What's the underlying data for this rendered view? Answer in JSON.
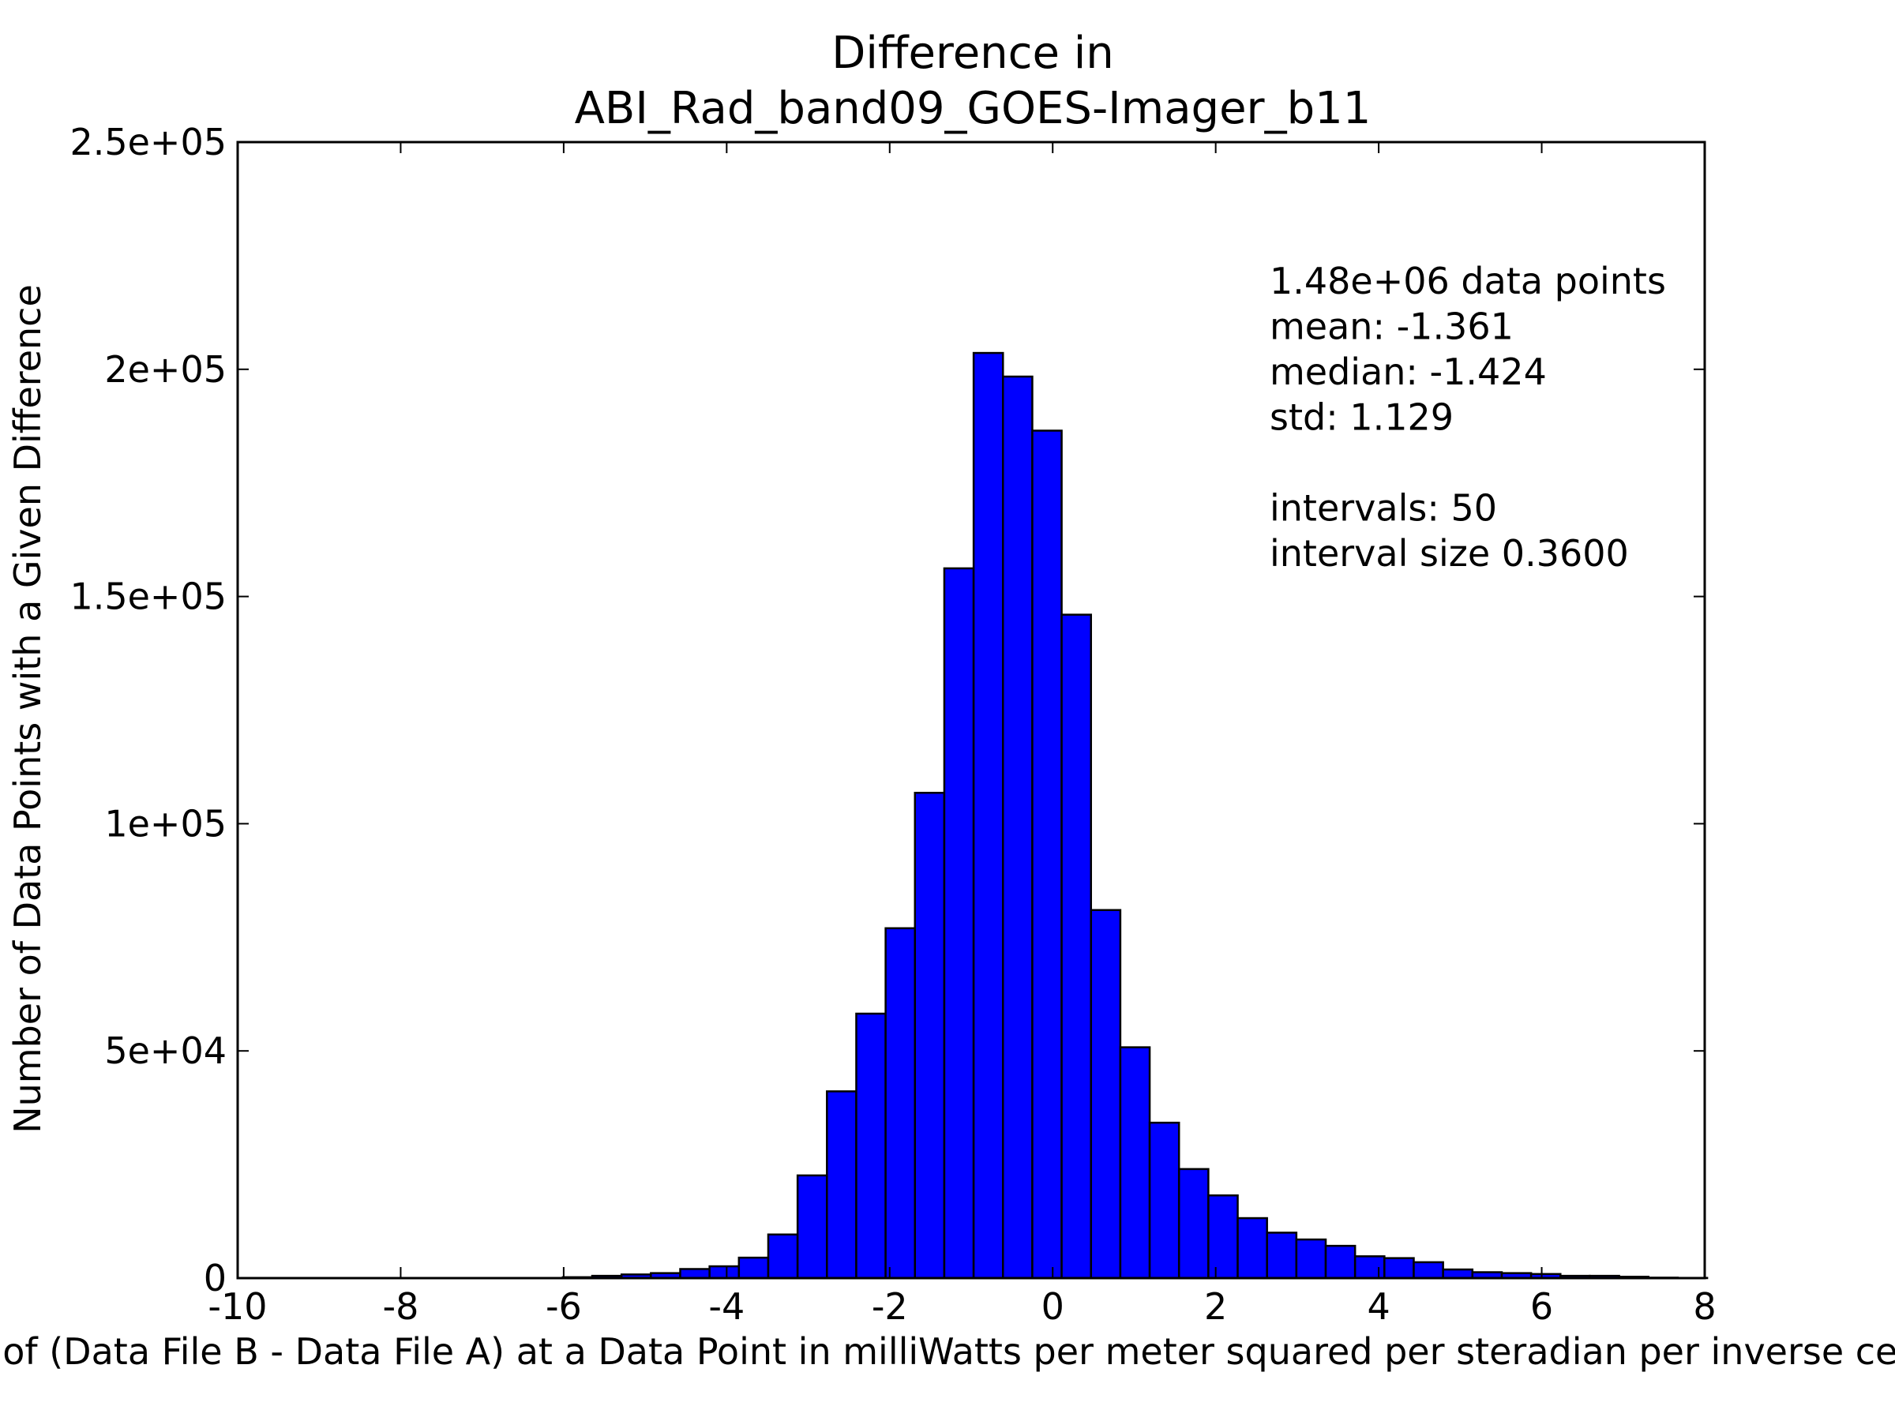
{
  "chart_data": {
    "type": "bar",
    "title_lines": [
      "Difference in",
      "ABI_Rad_band09_GOES-Imager_b11"
    ],
    "xlabel": "Value of (Data File B - Data File A) at a Data Point in milliWatts per meter squared per steradian per inverse centimeter",
    "ylabel": "Number of Data Points with a Given Difference",
    "xlim": [
      -10,
      8
    ],
    "ylim": [
      0,
      250000
    ],
    "xticks": [
      "-10",
      "-8",
      "-6",
      "-4",
      "-2",
      "0",
      "2",
      "4",
      "6",
      "8"
    ],
    "yticks": [
      "0",
      "5e+04",
      "1e+05",
      "1.5e+05",
      "2e+05",
      "2.5e+05"
    ],
    "bar_color": "#0000ff",
    "bar_edge_color": "#000000",
    "bin_start": -9.97,
    "bin_width": 0.36,
    "values": [
      0,
      0,
      0,
      0,
      0,
      0,
      0,
      0,
      0,
      0,
      0,
      200,
      500,
      800,
      1100,
      2000,
      2600,
      4500,
      9600,
      22600,
      41100,
      58200,
      77000,
      106800,
      156200,
      203600,
      198400,
      186500,
      146000,
      81000,
      50800,
      34200,
      24000,
      18200,
      13200,
      10000,
      8500,
      7100,
      4800,
      4400,
      3500,
      1900,
      1300,
      1100,
      900,
      500,
      500,
      300,
      100,
      50
    ],
    "stats_lines": [
      "1.48e+06 data points",
      "mean: -1.361",
      "median: -1.424",
      "std: 1.129",
      "",
      "intervals: 50",
      "interval size 0.3600"
    ],
    "grid": false
  }
}
